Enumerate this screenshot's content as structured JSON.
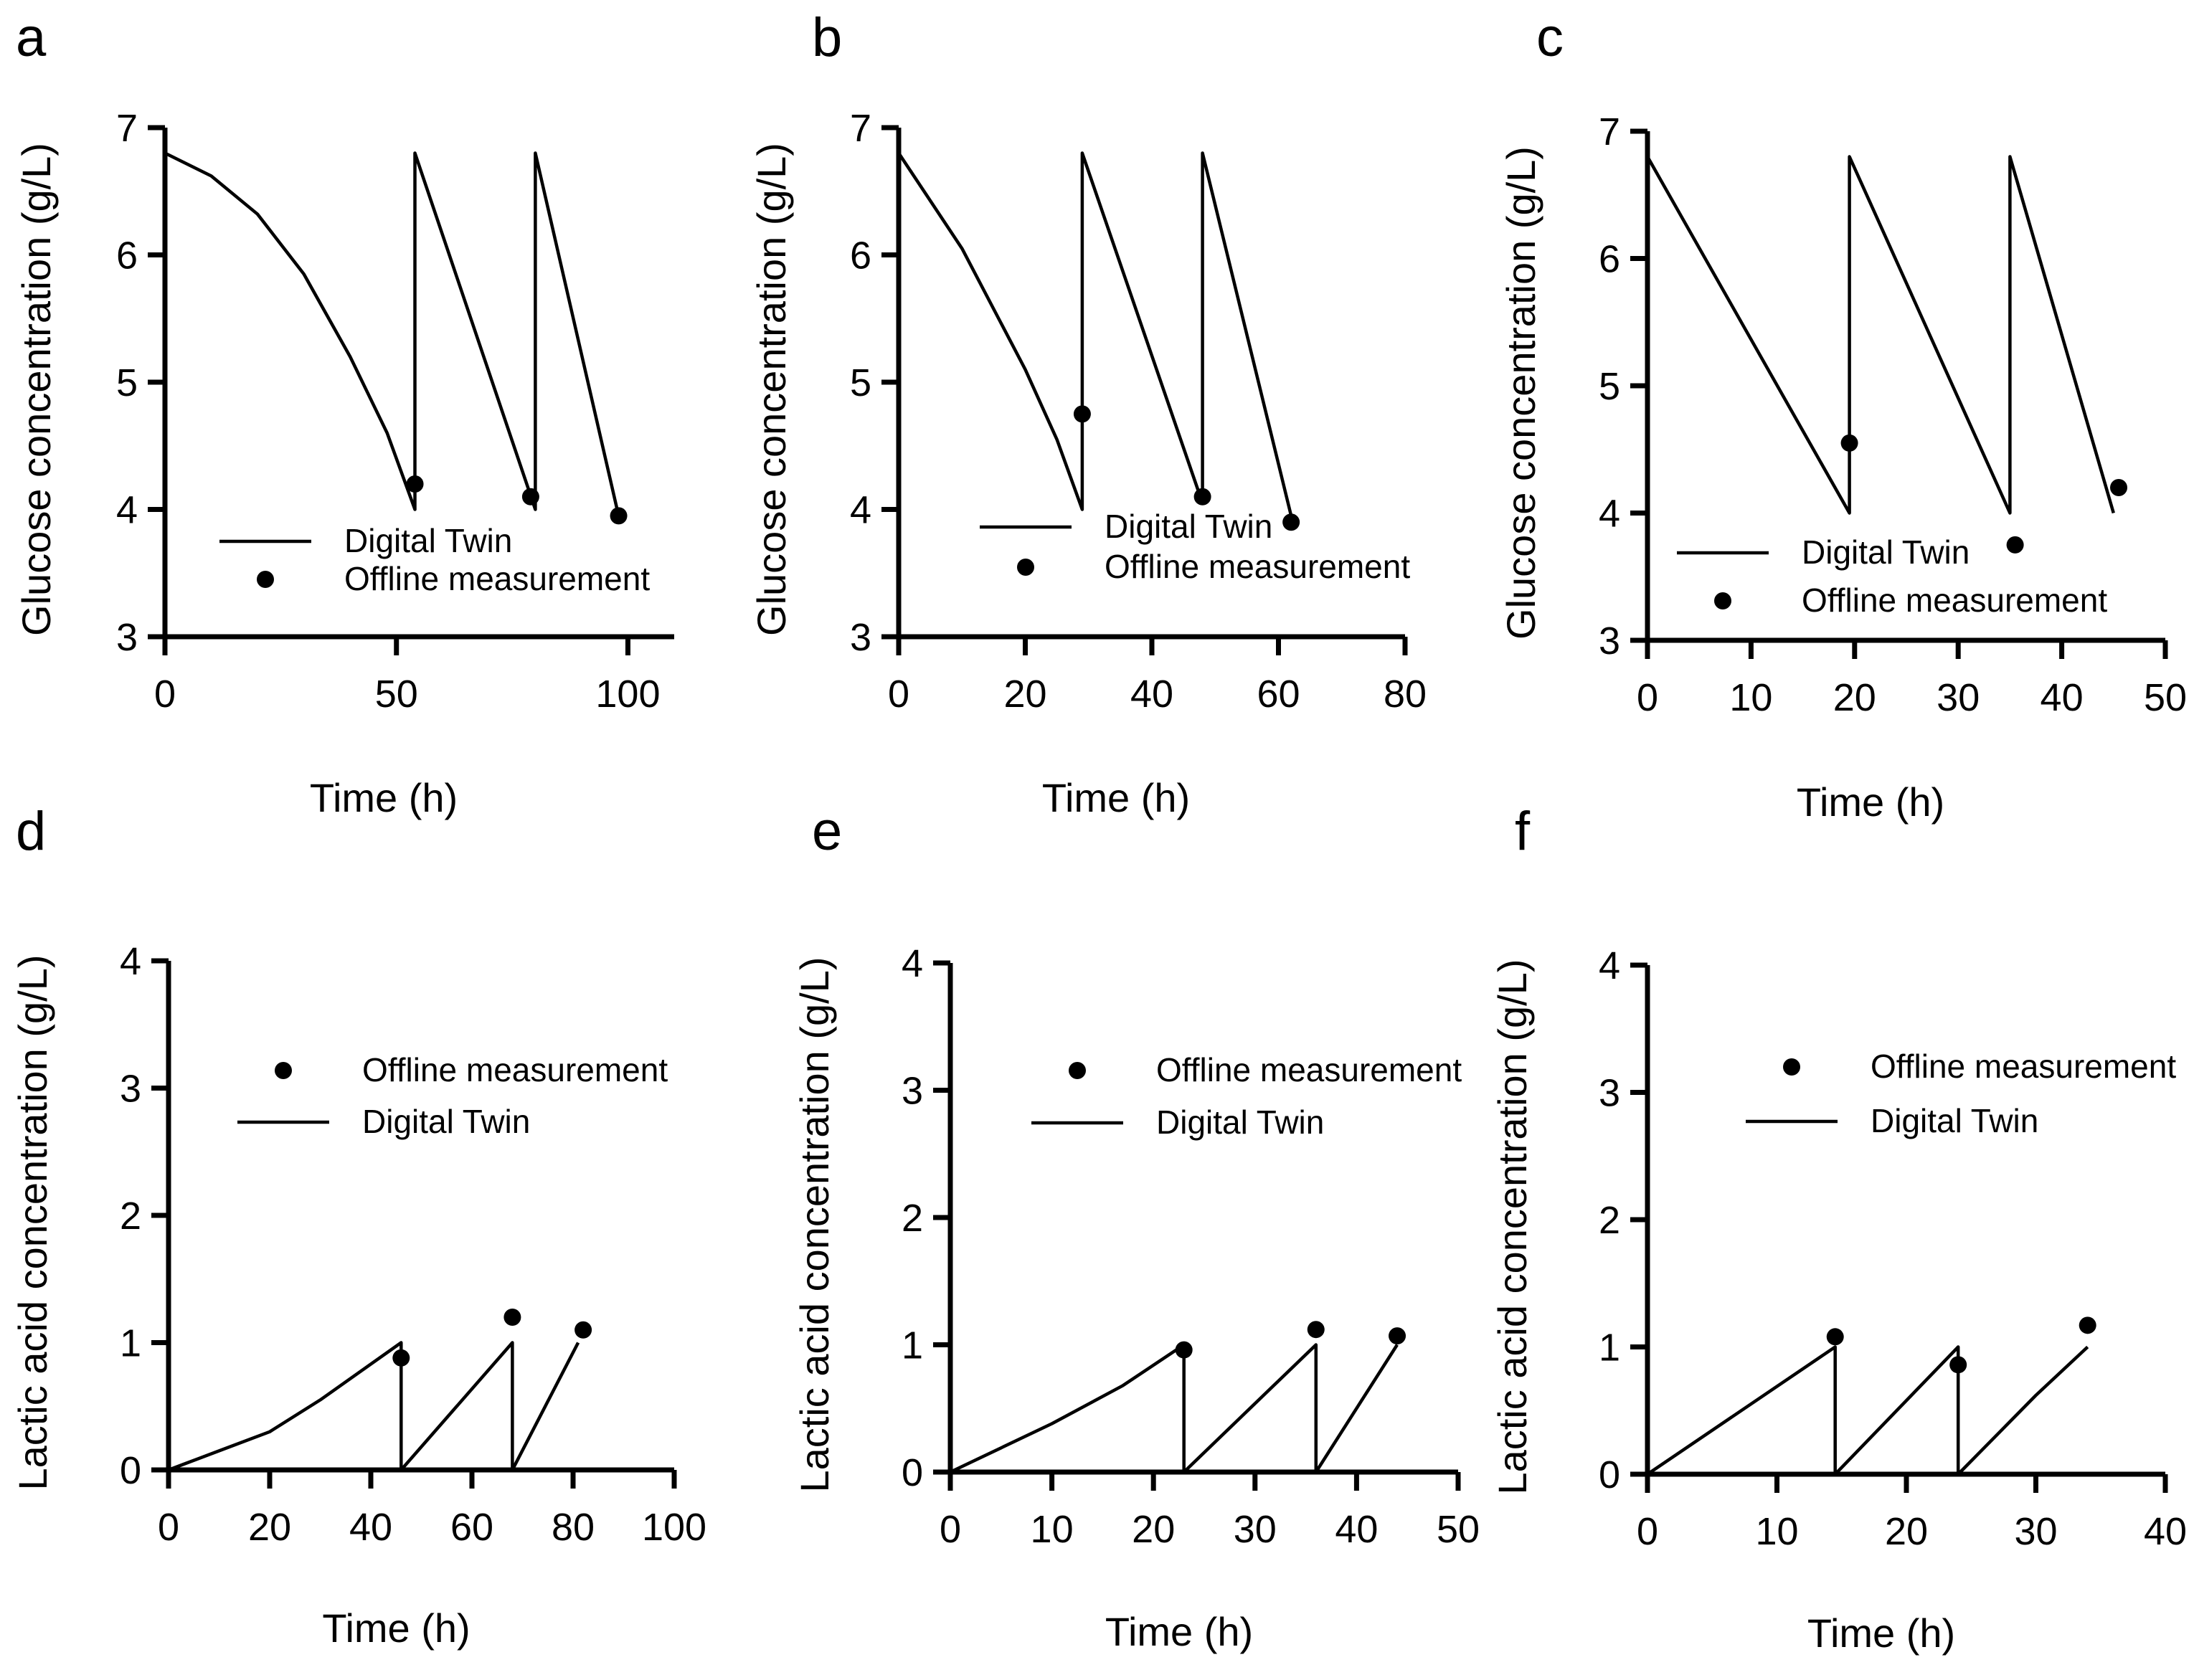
{
  "chart_data": [
    {
      "id": "a",
      "type": "line",
      "panel_label": "a",
      "xlabel": "Time (h)",
      "ylabel": "Glucose concentration (g/L)",
      "xlim": [
        0,
        110
      ],
      "ylim": [
        3,
        7
      ],
      "xticks": [
        0,
        50,
        100
      ],
      "yticks": [
        3,
        4,
        5,
        6,
        7
      ],
      "legend": {
        "position": "lower-center",
        "entries": [
          "Digital Twin",
          "Offline measurement"
        ],
        "order": [
          "line",
          "point"
        ]
      },
      "series": [
        {
          "name": "Digital Twin",
          "kind": "line",
          "x": [
            0,
            10,
            20,
            30,
            40,
            48,
            54,
            54,
            80,
            80,
            98
          ],
          "y": [
            6.8,
            6.62,
            6.32,
            5.85,
            5.2,
            4.6,
            4.0,
            6.8,
            4.0,
            6.8,
            3.95
          ]
        },
        {
          "name": "Offline measurement",
          "kind": "scatter",
          "x": [
            54,
            79,
            98
          ],
          "y": [
            4.2,
            4.1,
            3.95
          ]
        }
      ]
    },
    {
      "id": "b",
      "type": "line",
      "panel_label": "b",
      "xlabel": "Time (h)",
      "ylabel": "Glucose concentration (g/L)",
      "xlim": [
        0,
        80
      ],
      "ylim": [
        3,
        7
      ],
      "xticks": [
        0,
        20,
        40,
        60,
        80
      ],
      "yticks": [
        3,
        4,
        5,
        6,
        7
      ],
      "legend": {
        "position": "lower-center",
        "entries": [
          "Digital Twin",
          "Offline measurement"
        ],
        "order": [
          "line",
          "point"
        ]
      },
      "series": [
        {
          "name": "Digital Twin",
          "kind": "line",
          "x": [
            0,
            10,
            20,
            25,
            29,
            29,
            48,
            48,
            62
          ],
          "y": [
            6.8,
            6.05,
            5.1,
            4.55,
            4.0,
            6.8,
            4.05,
            6.8,
            3.95
          ]
        },
        {
          "name": "Offline measurement",
          "kind": "scatter",
          "x": [
            29,
            48,
            62
          ],
          "y": [
            4.75,
            4.1,
            3.9
          ]
        }
      ]
    },
    {
      "id": "c",
      "type": "line",
      "panel_label": "c",
      "xlabel": "Time (h)",
      "ylabel": "Glucose concentration (g/L)",
      "xlim": [
        0,
        50
      ],
      "ylim": [
        3,
        7
      ],
      "xticks": [
        0,
        10,
        20,
        30,
        40,
        50
      ],
      "yticks": [
        3,
        4,
        5,
        6,
        7
      ],
      "legend": {
        "position": "lower-center",
        "entries": [
          "Digital Twin",
          "Offline measurement"
        ],
        "order": [
          "line",
          "point"
        ]
      },
      "series": [
        {
          "name": "Digital Twin",
          "kind": "line",
          "x": [
            0,
            19.5,
            19.5,
            35,
            35,
            45
          ],
          "y": [
            6.8,
            4.0,
            6.8,
            4.0,
            6.8,
            4.0
          ]
        },
        {
          "name": "Offline measurement",
          "kind": "scatter",
          "x": [
            19.5,
            35.5,
            45.5
          ],
          "y": [
            4.55,
            3.75,
            4.2
          ]
        }
      ]
    },
    {
      "id": "d",
      "type": "line",
      "panel_label": "d",
      "xlabel": "Time (h)",
      "ylabel": "Lactic acid concentration (g/L)",
      "xlim": [
        0,
        100
      ],
      "ylim": [
        0,
        4
      ],
      "xticks": [
        0,
        20,
        40,
        60,
        80,
        100
      ],
      "yticks": [
        0,
        1,
        2,
        3,
        4
      ],
      "legend": {
        "position": "upper-center",
        "entries": [
          "Offline measurement",
          "Digital Twin"
        ],
        "order": [
          "point",
          "line"
        ]
      },
      "series": [
        {
          "name": "Digital Twin",
          "kind": "line",
          "x": [
            0,
            10,
            20,
            30,
            46,
            46,
            68,
            68,
            81
          ],
          "y": [
            0,
            0.15,
            0.3,
            0.55,
            1.0,
            0,
            1.0,
            0,
            1.0
          ]
        },
        {
          "name": "Offline measurement",
          "kind": "scatter",
          "x": [
            46,
            68,
            82
          ],
          "y": [
            0.88,
            1.2,
            1.1
          ]
        }
      ]
    },
    {
      "id": "e",
      "type": "line",
      "panel_label": "e",
      "xlabel": "Time (h)",
      "ylabel": "Lactic acid concentration (g/L)",
      "xlim": [
        0,
        50
      ],
      "ylim": [
        0,
        4
      ],
      "xticks": [
        0,
        10,
        20,
        30,
        40,
        50
      ],
      "yticks": [
        0,
        1,
        2,
        3,
        4
      ],
      "legend": {
        "position": "upper-center",
        "entries": [
          "Offline measurement",
          "Digital Twin"
        ],
        "order": [
          "point",
          "line"
        ]
      },
      "series": [
        {
          "name": "Digital Twin",
          "kind": "line",
          "x": [
            0,
            10,
            17,
            23,
            23,
            36,
            36,
            44
          ],
          "y": [
            0,
            0.38,
            0.68,
            1.0,
            0,
            1.0,
            0,
            1.0
          ]
        },
        {
          "name": "Offline measurement",
          "kind": "scatter",
          "x": [
            23,
            36,
            44
          ],
          "y": [
            0.96,
            1.12,
            1.07
          ]
        }
      ]
    },
    {
      "id": "f",
      "type": "line",
      "panel_label": "f",
      "xlabel": "Time (h)",
      "ylabel": "Lactic acid concentration (g/L)",
      "xlim": [
        0,
        40
      ],
      "ylim": [
        0,
        4
      ],
      "xticks": [
        0,
        10,
        20,
        30,
        40
      ],
      "yticks": [
        0,
        1,
        2,
        3,
        4
      ],
      "legend": {
        "position": "upper-center",
        "entries": [
          "Offline measurement",
          "Digital Twin"
        ],
        "order": [
          "point",
          "line"
        ]
      },
      "series": [
        {
          "name": "Digital Twin",
          "kind": "line",
          "x": [
            0,
            14.5,
            14.5,
            24,
            24,
            30,
            34
          ],
          "y": [
            0,
            1.0,
            0,
            1.0,
            0,
            0.62,
            1.0
          ]
        },
        {
          "name": "Offline measurement",
          "kind": "scatter",
          "x": [
            14.5,
            24,
            34
          ],
          "y": [
            1.08,
            0.86,
            1.17
          ]
        }
      ]
    }
  ]
}
